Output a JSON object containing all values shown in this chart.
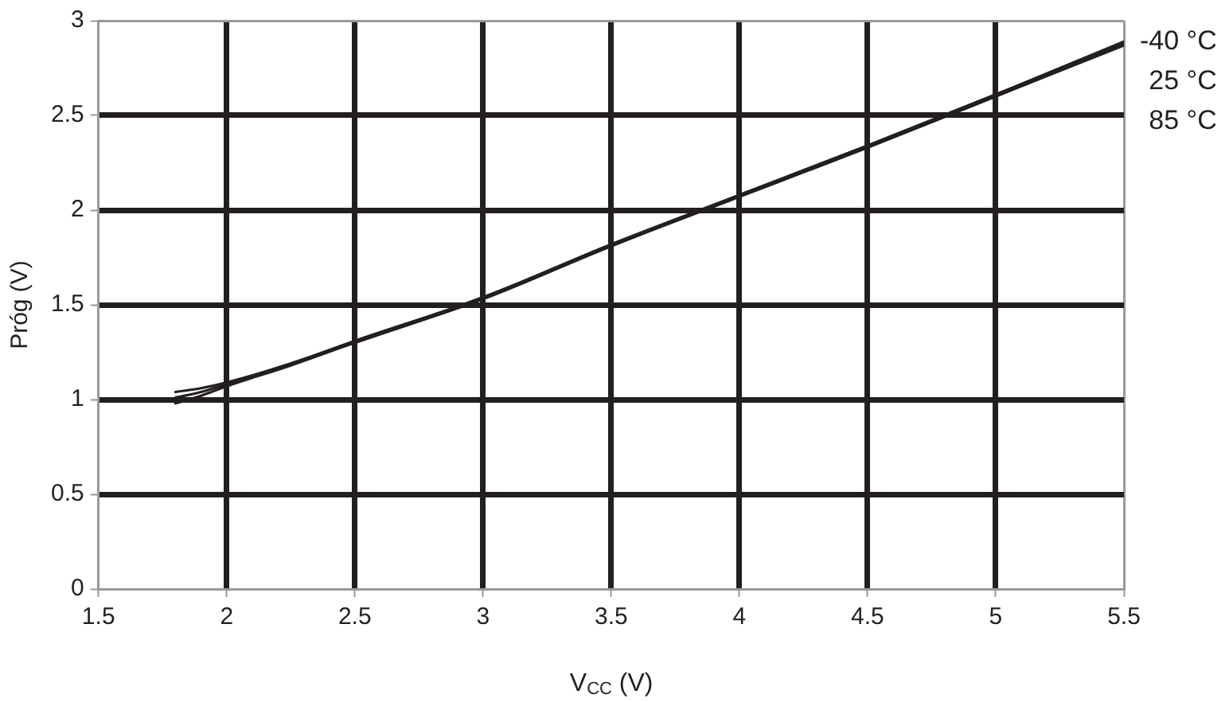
{
  "chart_data": {
    "type": "line",
    "xlabel": "V$_{CC}$ (V)",
    "ylabel": "Próg (V)",
    "xlim": [
      1.5,
      5.5
    ],
    "xticks": [
      1.5,
      2,
      2.5,
      3,
      3.5,
      4,
      4.5,
      5,
      5.5
    ],
    "ylim": [
      0,
      3
    ],
    "yticks": [
      0,
      0.5,
      1,
      1.5,
      2,
      2.5,
      3
    ],
    "grid": true,
    "marker": "none",
    "line_style": "solid",
    "x": [
      1.8,
      1.9,
      2,
      2.25,
      2.5,
      3,
      3.5,
      4,
      4.5,
      5,
      5.5
    ],
    "series": [
      {
        "name": "-40 °C",
        "color": "#231f20",
        "values": [
          1.04,
          1.06,
          1.09,
          1.19,
          1.31,
          1.54,
          1.82,
          2.08,
          2.34,
          2.61,
          2.89
        ]
      },
      {
        "name": "25 °C",
        "color": "#231f20",
        "values": [
          1.01,
          1.04,
          1.08,
          1.19,
          1.3,
          1.54,
          1.81,
          2.08,
          2.34,
          2.61,
          2.88
        ]
      },
      {
        "name": "85 °C",
        "color": "#231f20",
        "values": [
          0.98,
          1.02,
          1.07,
          1.18,
          1.3,
          1.53,
          1.81,
          2.07,
          2.33,
          2.6,
          2.87
        ]
      }
    ]
  }
}
